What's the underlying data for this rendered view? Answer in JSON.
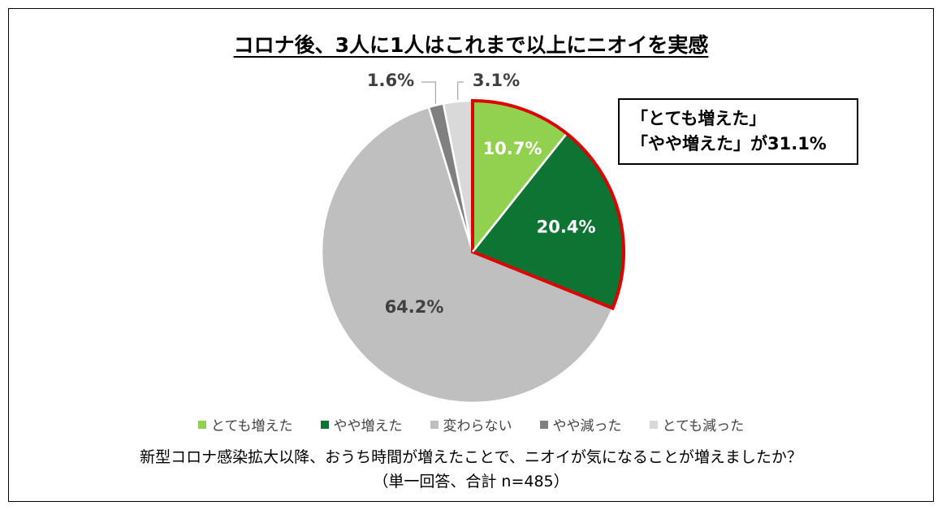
{
  "chart_data": {
    "type": "pie",
    "title": "コロナ後、3人に1人はこれまで以上にニオイを実感",
    "slices": [
      {
        "label": "とても増えた",
        "value": 10.7,
        "value_label": "10.7%",
        "color": "#92d050"
      },
      {
        "label": "やや増えた",
        "value": 20.4,
        "value_label": "20.4%",
        "color": "#0e7434"
      },
      {
        "label": "変わらない",
        "value": 64.2,
        "value_label": "64.2%",
        "color": "#bfbfbf"
      },
      {
        "label": "やや減った",
        "value": 1.6,
        "value_label": "1.6%",
        "color": "#808080"
      },
      {
        "label": "とても減った",
        "value": 3.1,
        "value_label": "3.1%",
        "color": "#d9d9d9"
      }
    ],
    "highlight_color": "#e00000",
    "callout": {
      "line1": "「とても増えた」",
      "line2": "「やや増えた」が31.1%"
    },
    "legend_position": "bottom"
  },
  "question": "新型コロナ感染拡大以降、おうち時間が増えたことで、ニオイが気になることが増えましたか？",
  "sample_note": "（単一回答、合計 n=485）"
}
